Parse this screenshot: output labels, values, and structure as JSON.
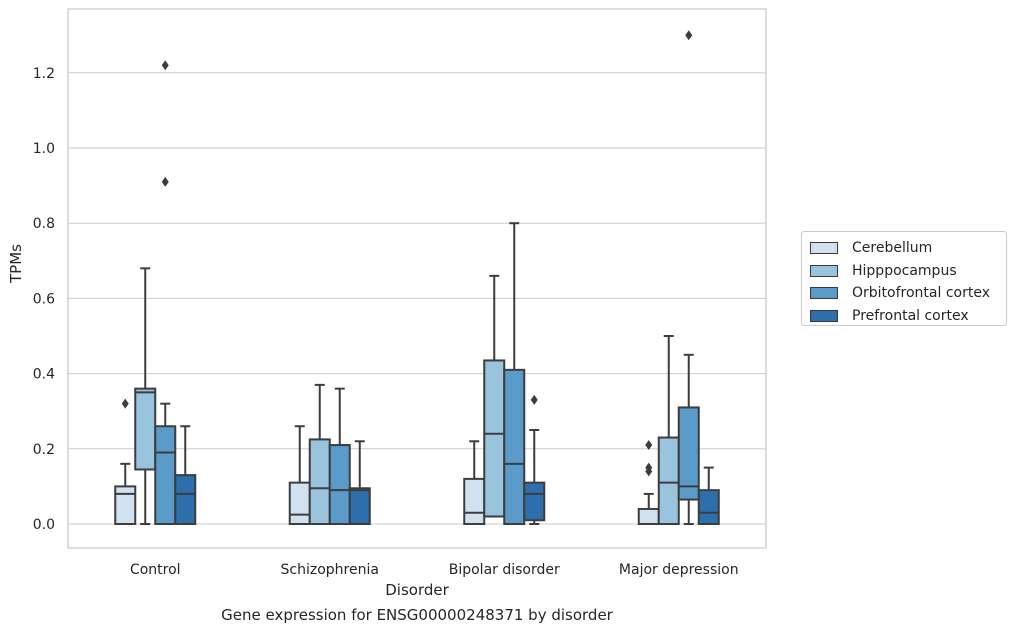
{
  "caption": "Gene expression for ENSG00000248371 by disorder",
  "chart_data": {
    "type": "box",
    "title": "",
    "xlabel": "Disorder",
    "ylabel": "TPMs",
    "ylim": [
      -0.065,
      1.37
    ],
    "yticks": [
      "0.0",
      "0.2",
      "0.4",
      "0.6",
      "0.8",
      "1.0",
      "1.2"
    ],
    "grid": "horizontal",
    "legend_position": "right",
    "categories": [
      "Control",
      "Schizophrenia",
      "Bipolar disorder",
      "Major depression"
    ],
    "series": [
      {
        "name": "Cerebellum",
        "color": "#d1e1f0",
        "boxes": [
          {
            "whislo": 0.0,
            "q1": 0.0,
            "med": 0.08,
            "q3": 0.1,
            "whishi": 0.16,
            "fliers": [
              0.32
            ]
          },
          {
            "whislo": 0.0,
            "q1": 0.0,
            "med": 0.025,
            "q3": 0.11,
            "whishi": 0.26,
            "fliers": []
          },
          {
            "whislo": 0.0,
            "q1": 0.0,
            "med": 0.03,
            "q3": 0.12,
            "whishi": 0.22,
            "fliers": []
          },
          {
            "whislo": 0.0,
            "q1": 0.0,
            "med": 0.0,
            "q3": 0.04,
            "whishi": 0.08,
            "fliers": [
              0.14,
              0.15,
              0.21
            ]
          }
        ]
      },
      {
        "name": "Hipppocampus",
        "color": "#9ac4de",
        "boxes": [
          {
            "whislo": 0.0,
            "q1": 0.145,
            "med": 0.35,
            "q3": 0.36,
            "whishi": 0.68,
            "fliers": []
          },
          {
            "whislo": 0.0,
            "q1": 0.0,
            "med": 0.095,
            "q3": 0.225,
            "whishi": 0.37,
            "fliers": []
          },
          {
            "whislo": 0.02,
            "q1": 0.02,
            "med": 0.24,
            "q3": 0.435,
            "whishi": 0.66,
            "fliers": []
          },
          {
            "whislo": 0.0,
            "q1": 0.0,
            "med": 0.11,
            "q3": 0.23,
            "whishi": 0.5,
            "fliers": []
          }
        ]
      },
      {
        "name": "Orbitofrontal cortex",
        "color": "#5a9bc9",
        "boxes": [
          {
            "whislo": 0.0,
            "q1": 0.0,
            "med": 0.19,
            "q3": 0.26,
            "whishi": 0.32,
            "fliers": [
              0.91,
              1.22
            ]
          },
          {
            "whislo": 0.0,
            "q1": 0.0,
            "med": 0.09,
            "q3": 0.21,
            "whishi": 0.36,
            "fliers": []
          },
          {
            "whislo": 0.0,
            "q1": 0.0,
            "med": 0.16,
            "q3": 0.41,
            "whishi": 0.8,
            "fliers": []
          },
          {
            "whislo": 0.0,
            "q1": 0.065,
            "med": 0.1,
            "q3": 0.31,
            "whishi": 0.45,
            "fliers": [
              1.3
            ]
          }
        ]
      },
      {
        "name": "Prefrontal cortex",
        "color": "#2d6fac",
        "boxes": [
          {
            "whislo": 0.0,
            "q1": 0.0,
            "med": 0.08,
            "q3": 0.13,
            "whishi": 0.26,
            "fliers": []
          },
          {
            "whislo": 0.0,
            "q1": 0.0,
            "med": 0.09,
            "q3": 0.095,
            "whishi": 0.22,
            "fliers": []
          },
          {
            "whislo": 0.0,
            "q1": 0.01,
            "med": 0.08,
            "q3": 0.11,
            "whishi": 0.25,
            "fliers": [
              0.33
            ]
          },
          {
            "whislo": 0.0,
            "q1": 0.0,
            "med": 0.03,
            "q3": 0.09,
            "whishi": 0.15,
            "fliers": []
          }
        ]
      }
    ]
  }
}
